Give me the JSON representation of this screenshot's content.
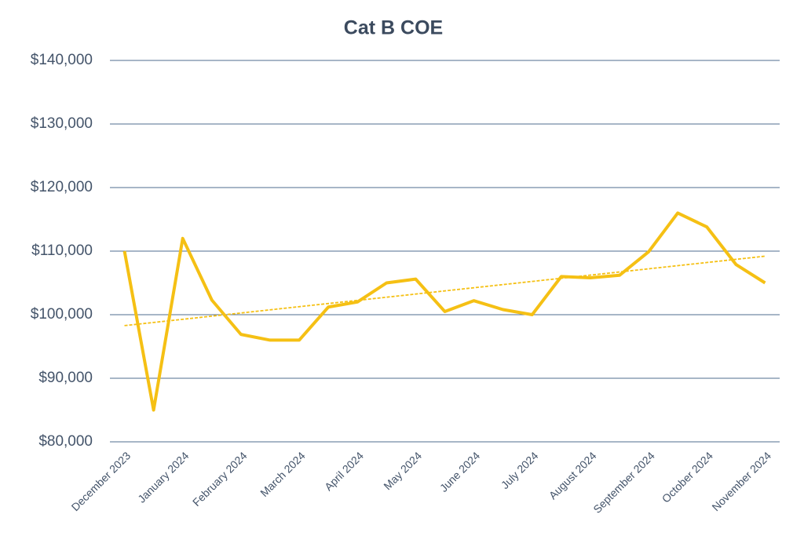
{
  "chart_data": {
    "type": "line",
    "title": "Cat B COE",
    "categories": [
      "December 2023",
      null,
      "January 2024",
      null,
      "February 2024",
      null,
      "March 2024",
      null,
      "April 2024",
      null,
      "May 2024",
      null,
      "June 2024",
      null,
      "July 2024",
      null,
      "August 2024",
      null,
      "September 2024",
      null,
      "October 2024",
      null,
      "November 2024"
    ],
    "series": [
      {
        "name": "Cat B COE",
        "color": "#f5c014",
        "values": [
          110000,
          85000,
          112000,
          102300,
          96900,
          96000,
          96000,
          101200,
          102000,
          105000,
          105600,
          100500,
          102200,
          100800,
          100000,
          106000,
          105800,
          106200,
          109900,
          116000,
          113800,
          107900,
          105000
        ]
      }
    ],
    "trendline": true,
    "ylim": [
      80000,
      140000
    ],
    "yticks": [
      {
        "value": 80000,
        "label": "$80,000"
      },
      {
        "value": 90000,
        "label": "$90,000"
      },
      {
        "value": 100000,
        "label": "$100,000"
      },
      {
        "value": 110000,
        "label": "$110,000"
      },
      {
        "value": 120000,
        "label": "$120,000"
      },
      {
        "value": 130000,
        "label": "$130,000"
      },
      {
        "value": 140000,
        "label": "$140,000"
      }
    ],
    "grid": true
  }
}
